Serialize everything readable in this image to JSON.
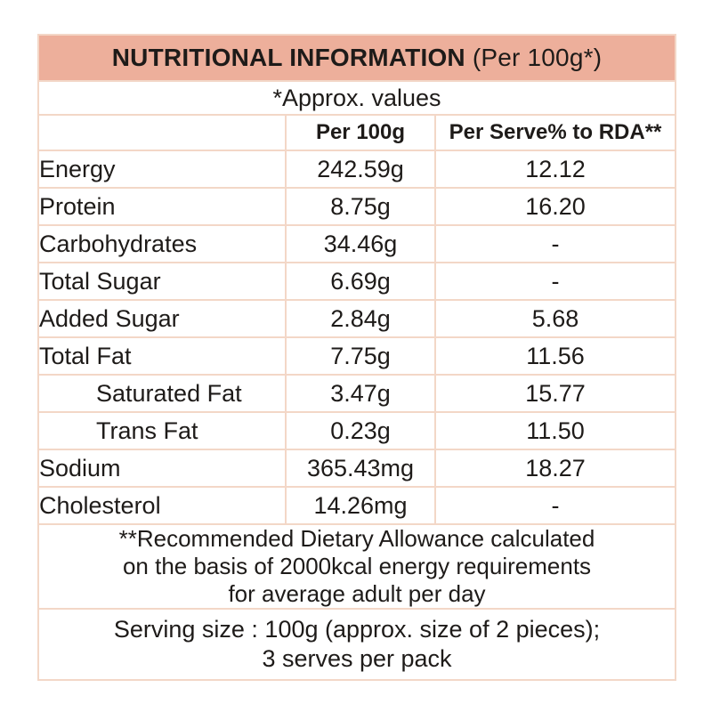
{
  "title": {
    "main": "NUTRITIONAL INFORMATION",
    "suffix": " (Per 100g*)"
  },
  "approx_note": "*Approx. values",
  "columns": {
    "nutrient": "",
    "per100g": "Per 100g",
    "rda": "Per Serve% to RDA**"
  },
  "rows": [
    {
      "label": "Energy",
      "per100g": "242.59g",
      "rda": "12.12"
    },
    {
      "label": "Protein",
      "per100g": "8.75g",
      "rda": "16.20"
    },
    {
      "label": "Carbohydrates",
      "per100g": "34.46g",
      "rda": "-"
    },
    {
      "label": "Total Sugar",
      "per100g": "6.69g",
      "rda": "-"
    },
    {
      "label": "Added Sugar",
      "per100g": "2.84g",
      "rda": "5.68"
    },
    {
      "label": "Total Fat",
      "per100g": "7.75g",
      "rda": "11.56"
    },
    {
      "label": "Saturated Fat",
      "per100g": "3.47g",
      "rda": "15.77"
    },
    {
      "label": "Trans Fat",
      "per100g": "0.23g",
      "rda": "11.50"
    },
    {
      "label": "Sodium",
      "per100g": "365.43mg",
      "rda": "18.27"
    },
    {
      "label": "Cholesterol",
      "per100g": "14.26mg",
      "rda": "-"
    }
  ],
  "footnotes": {
    "rda_lines": [
      "**Recommended Dietary Allowance calculated",
      "on the basis of 2000kcal energy requirements",
      "for average adult per day"
    ],
    "serving_lines": [
      "Serving size : 100g (approx. size of 2 pieces);",
      "3 serves per pack"
    ]
  },
  "colors": {
    "header_bg": "#edaf9b",
    "border": "#f3d7c7",
    "text": "#1e1b19"
  }
}
